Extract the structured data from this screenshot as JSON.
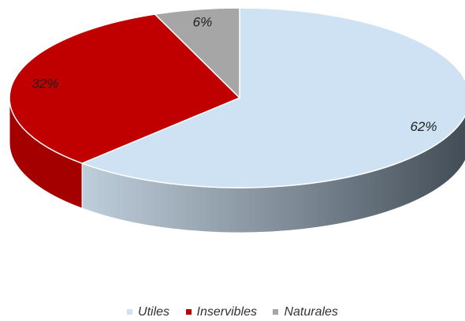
{
  "chart_data": {
    "type": "pie",
    "style": "3d",
    "categories": [
      "Utiles",
      "Inservibles",
      "Naturales"
    ],
    "values": [
      62,
      32,
      6
    ],
    "labels": [
      "62%",
      "32%",
      "6%"
    ],
    "colors": [
      "#cfe2f3",
      "#c00000",
      "#a6a6a6"
    ],
    "side_colors": [
      "#8a96a0",
      "#a40000",
      "#808080"
    ],
    "legend_position": "bottom"
  }
}
